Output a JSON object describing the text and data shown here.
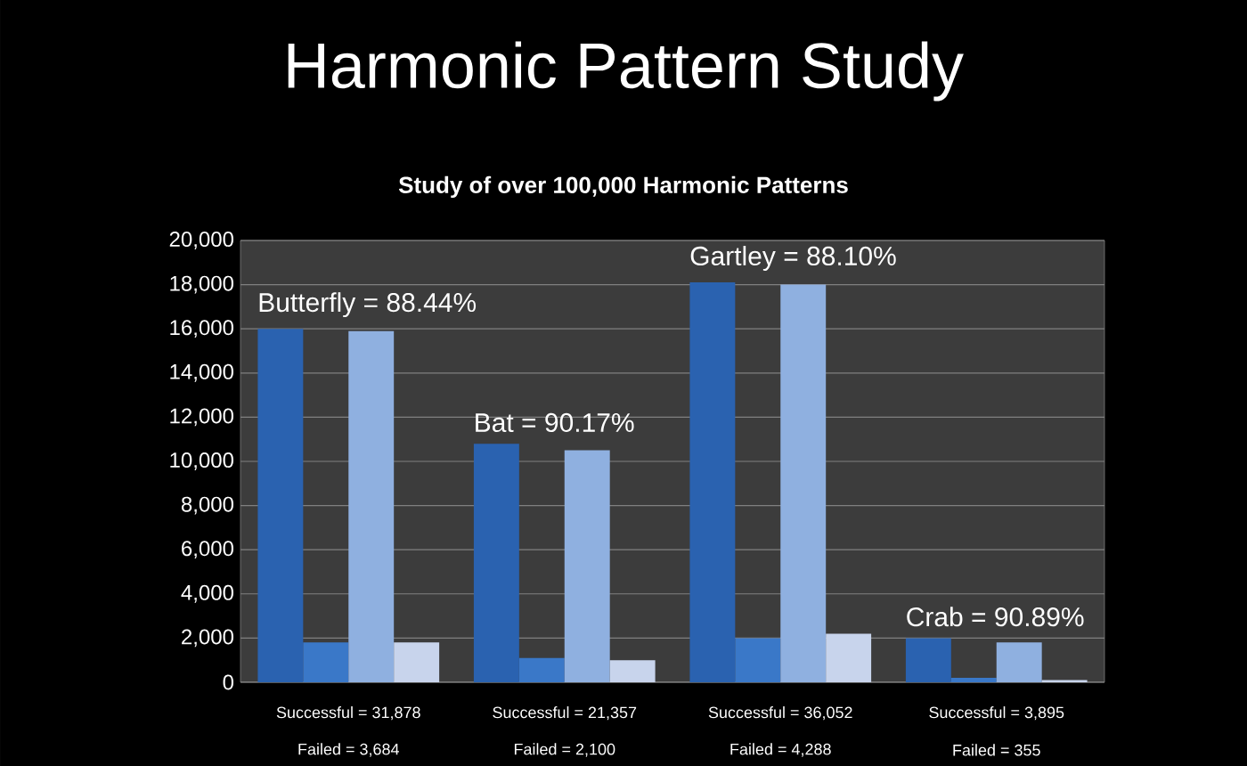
{
  "chart_data": {
    "type": "bar",
    "title": "Harmonic Pattern Study",
    "subtitle": "Study of over 100,000 Harmonic Patterns",
    "categories": [
      "Successful = 31,878",
      "Successful = 21,357",
      "Successful = 36,052",
      "Successful = 3,895"
    ],
    "series": [
      {
        "color": "#2a62b0",
        "values": [
          16000,
          10800,
          18100,
          2000
        ]
      },
      {
        "color": "#3a78c8",
        "values": [
          1800,
          1100,
          2000,
          200
        ]
      },
      {
        "color": "#8fb0e0",
        "values": [
          15900,
          10500,
          18000,
          1800
        ]
      },
      {
        "color": "#c8d4ec",
        "values": [
          1800,
          1000,
          2200,
          100
        ]
      }
    ],
    "ylim": [
      0,
      20000
    ],
    "yticks": [
      0,
      {
        "value": 2000,
        "label": "2,000"
      },
      {
        "value": 4000,
        "label": "4,000"
      },
      {
        "value": 6000,
        "label": "6,000"
      },
      {
        "value": 8000,
        "label": "8,000"
      },
      {
        "value": 10000,
        "label": "10,000"
      },
      {
        "value": 12000,
        "label": "12,000"
      },
      {
        "value": 14000,
        "label": "14,000"
      },
      {
        "value": 16000,
        "label": "16,000"
      },
      {
        "value": 18000,
        "label": "18,000"
      },
      {
        "value": 20000,
        "label": "20,000"
      }
    ],
    "grid": "y",
    "annotations": [
      "Butterfly = 88.44%",
      "Bat = 90.17%",
      "Gartley = 88.10%",
      "Crab = 90.89%",
      "Failed = 3,684",
      "Failed = 2,100",
      "Failed = 4,288",
      "Failed = 355"
    ]
  }
}
